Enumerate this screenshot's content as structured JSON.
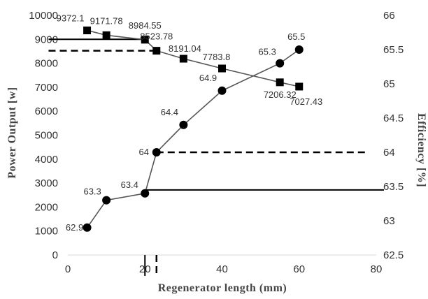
{
  "chart_data": {
    "type": "line",
    "title": "",
    "xlabel": "Regenerator length (mm)",
    "ylabel": "Power  Output  [w]",
    "y2label": "Efficiency  [%]",
    "xlim": [
      0,
      80
    ],
    "ylim": [
      0,
      10000
    ],
    "y2lim": [
      62.5,
      66
    ],
    "x_ticks": [
      "0",
      "20",
      "40",
      "60",
      "80"
    ],
    "y_ticks": [
      "0",
      "1000",
      "2000",
      "3000",
      "4000",
      "5000",
      "6000",
      "7000",
      "8000",
      "9000",
      "10000"
    ],
    "y2_ticks": [
      "62.5",
      "63",
      "63.5",
      "64",
      "64.5",
      "65",
      "65.5",
      "66"
    ],
    "grid": false,
    "series": [
      {
        "axis": "left",
        "marker": "square",
        "x": [
          5,
          10,
          20,
          23,
          30,
          40,
          55,
          60
        ],
        "values": [
          9372.1,
          9171.78,
          8984.55,
          8523.78,
          8191.04,
          7783.8,
          7206.32,
          7027.43
        ],
        "labels": [
          "9372.1",
          "9171.78",
          "8984.55",
          "8523.78",
          "8191.04",
          "7783.8",
          "7206.32",
          "7027.43"
        ]
      },
      {
        "axis": "right",
        "marker": "circle",
        "x": [
          5,
          10,
          20,
          23,
          30,
          40,
          55,
          60
        ],
        "values": [
          62.9,
          63.3,
          63.4,
          64,
          64.4,
          64.9,
          65.3,
          65.5
        ],
        "labels": [
          "62.9",
          "63.3",
          "63.4",
          "64",
          "64.4",
          "64.9",
          "65.3",
          "65.5"
        ]
      }
    ],
    "reference_lines": [
      {
        "style": "solid",
        "orientation": "horizontal",
        "axis": "left",
        "value": 9000,
        "from_x": -5,
        "to_x": 20
      },
      {
        "style": "solid",
        "orientation": "vertical",
        "x": 20,
        "from_y": 0,
        "to_y": 9000
      },
      {
        "style": "dashed",
        "orientation": "horizontal",
        "axis": "left",
        "value": 8523.78,
        "from_x": -5,
        "to_x": 23
      },
      {
        "style": "dashed",
        "orientation": "vertical",
        "x": 23,
        "from_y": 0,
        "to_y": 8523.78
      },
      {
        "style": "solid",
        "orientation": "horizontal",
        "axis": "right",
        "value": 63.45,
        "from_x": 20,
        "to_x": 82
      },
      {
        "style": "dashed",
        "orientation": "horizontal",
        "axis": "right",
        "value": 64,
        "from_x": 23,
        "to_x": 78
      }
    ]
  }
}
